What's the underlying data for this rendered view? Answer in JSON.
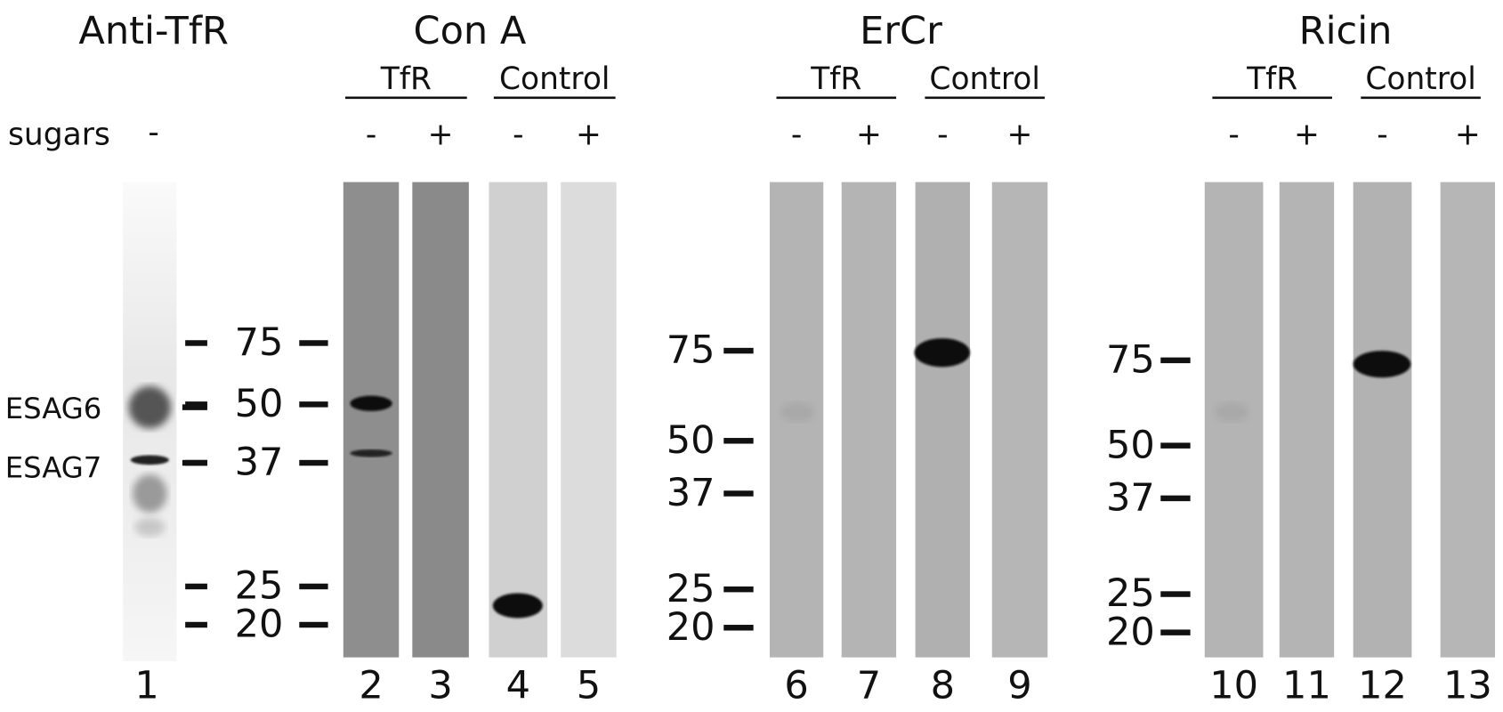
{
  "figure": {
    "sugars_label": "sugars",
    "panels": [
      {
        "title": "Anti-TfR",
        "sugars": [
          "-"
        ],
        "band_labels": [
          "ESAG6",
          "ESAG7"
        ],
        "lanes": [
          "1"
        ]
      },
      {
        "title": "Con A",
        "groups": [
          "TfR",
          "Control"
        ],
        "sugars": [
          "-",
          "+",
          "-",
          "+"
        ],
        "markers": [
          "75",
          "50",
          "37",
          "25",
          "20"
        ],
        "lanes": [
          "2",
          "3",
          "4",
          "5"
        ]
      },
      {
        "title": "ErCr",
        "groups": [
          "TfR",
          "Control"
        ],
        "sugars": [
          "-",
          "+",
          "-",
          "+"
        ],
        "markers": [
          "75",
          "50",
          "37",
          "25",
          "20"
        ],
        "lanes": [
          "6",
          "7",
          "8",
          "9"
        ]
      },
      {
        "title": "Ricin",
        "groups": [
          "TfR",
          "Control"
        ],
        "sugars": [
          "-",
          "+",
          "-",
          "+"
        ],
        "markers": [
          "75",
          "50",
          "37",
          "25",
          "20"
        ],
        "lanes": [
          "10",
          "11",
          "12",
          "13"
        ]
      }
    ]
  }
}
